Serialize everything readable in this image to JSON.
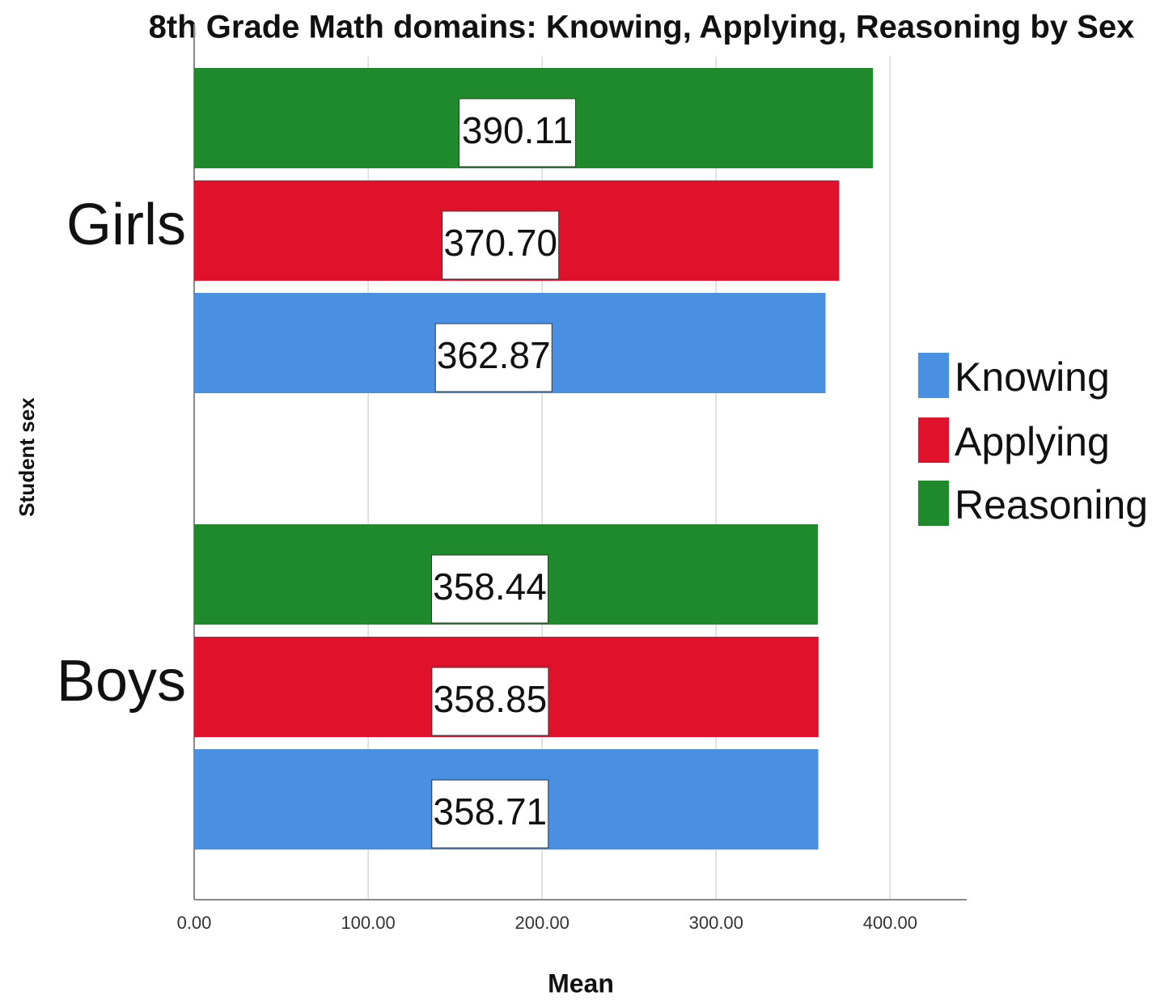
{
  "chart_data": {
    "type": "hbar",
    "title": "8th Grade Math domains: Knowing, Applying, Reasoning by Sex",
    "xlabel": "Mean",
    "ylabel": "Student sex",
    "categories": [
      "Girls",
      "Boys"
    ],
    "series": [
      {
        "name": "Knowing",
        "color": "#4a90e2",
        "values": [
          362.87,
          358.71
        ],
        "value_labels": [
          "362.87",
          "358.71"
        ]
      },
      {
        "name": "Applying",
        "color": "#e0112b",
        "values": [
          370.7,
          358.85
        ],
        "value_labels": [
          "370.70",
          "358.85"
        ]
      },
      {
        "name": "Reasoning",
        "color": "#1f8a2b",
        "values": [
          390.11,
          358.44
        ],
        "value_labels": [
          "390.11",
          "358.44"
        ]
      }
    ],
    "xlim": [
      0,
      444
    ],
    "xticks": [
      {
        "value": 0,
        "label": "0.00"
      },
      {
        "value": 100,
        "label": "100.00"
      },
      {
        "value": 200,
        "label": "200.00"
      },
      {
        "value": 300,
        "label": "300.00"
      },
      {
        "value": 400,
        "label": "400.00"
      }
    ],
    "grid": true,
    "legend": "right"
  }
}
